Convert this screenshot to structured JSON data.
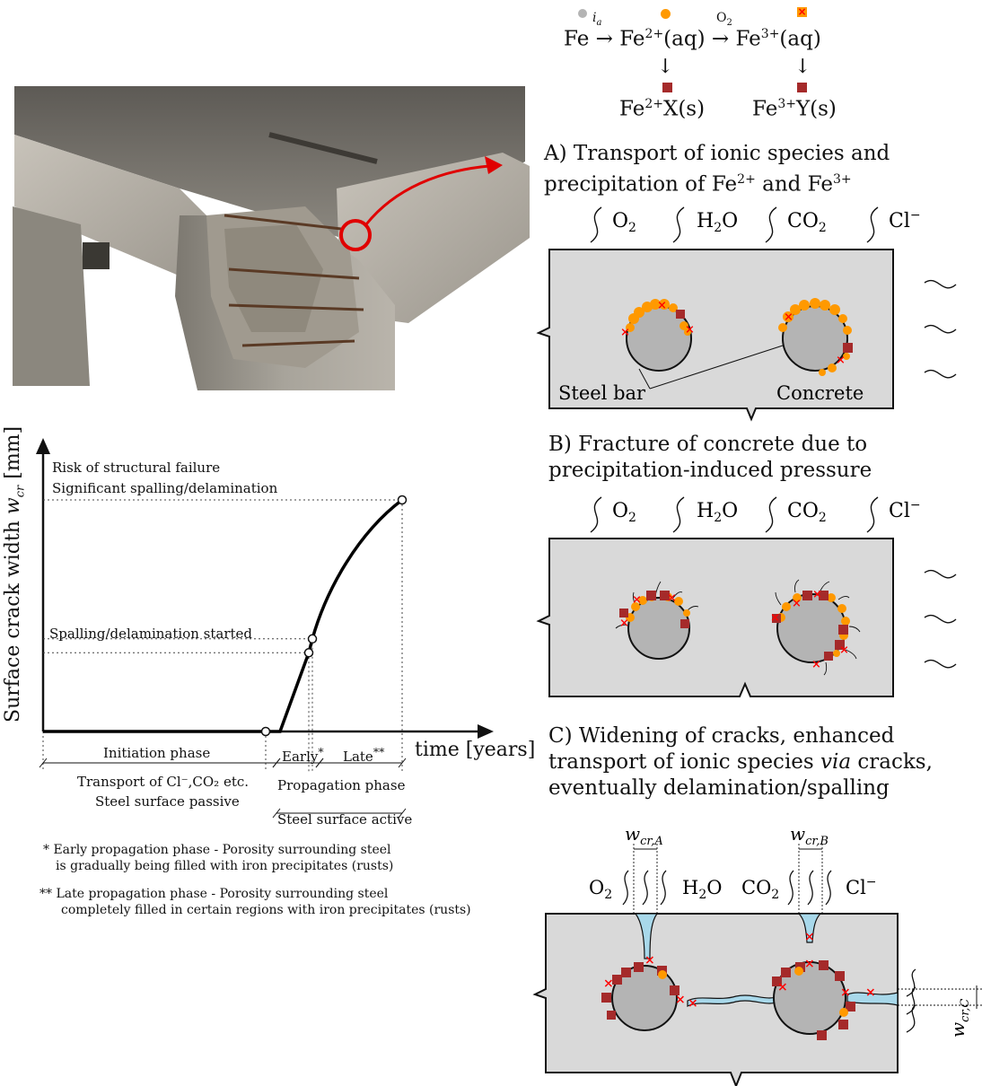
{
  "colors": {
    "concrete": "#d9d9d9",
    "steel": "#b4b4b4",
    "fe2_aq": "#ff9900",
    "fe_solid": "#a52a2a",
    "fe3_marker": "#ff0000",
    "crack_water": "#a8d8ea",
    "curve": "#000000",
    "photo_arrow": "#e00000"
  },
  "reaction": {
    "fe": "Fe",
    "ia": "i",
    "ia_sub": "a",
    "fe2_aq": "Fe",
    "fe2_aq_sup": "2+",
    "fe2_aq_tail": "(aq)",
    "o2": "O",
    "o2_sub": "2",
    "fe3_aq": "Fe",
    "fe3_aq_sup": "3+",
    "fe3_aq_tail": "(aq)",
    "fe2_s": "Fe",
    "fe2_s_sup": "2+",
    "fe2_s_tail": "X(s)",
    "fe3_s": "Fe",
    "fe3_s_sup": "3+",
    "fe3_s_tail": "Y(s)"
  },
  "panel_a": {
    "title_line1": "A) Transport of ionic species and",
    "title_line2_pre": "precipitation of Fe",
    "title_line2_sup1": "2+",
    "title_line2_mid": " and Fe",
    "title_line2_sup2": "3+",
    "species": [
      "O",
      "H",
      "CO",
      "Cl"
    ],
    "species_o2_sub": "2",
    "species_h2o_sub": "2",
    "species_h2o_tail": "O",
    "species_co2_sub": "2",
    "species_cl_sup": "−",
    "label_steel": "Steel bar",
    "label_concrete": "Concrete"
  },
  "panel_b": {
    "title_line1": "B) Fracture of concrete due to",
    "title_line2": "precipitation-induced pressure"
  },
  "panel_c": {
    "title_line1": "C) Widening of cracks, enhanced",
    "title_line2_pre": "transport of ionic species ",
    "title_line2_em": "via",
    "title_line2_post": " cracks,",
    "title_line3": "eventually delamination/spalling",
    "w_a": "w",
    "w_a_sub": "cr,A",
    "w_b": "w",
    "w_b_sub": "cr,B",
    "w_c": "w",
    "w_c_sub": "cr,C"
  },
  "chart_data": {
    "type": "line",
    "ylabel": "Surface crack width w_cr [mm]",
    "ylabel_text": "Surface crack width ",
    "ylabel_var": "w",
    "ylabel_sub": "cr",
    "ylabel_unit": " [mm]",
    "xlabel": "time [years]",
    "annotation_top_1": "Risk of structural failure",
    "annotation_top_2": "Significant spalling/delamination",
    "annotation_mid": "Spalling/delamination started",
    "points": [
      {
        "t": 0,
        "w": 0
      },
      {
        "t": 0.62,
        "w": 0
      },
      {
        "t": 0.66,
        "w": 0.0
      },
      {
        "t": 0.74,
        "w": 0.34
      },
      {
        "t": 0.75,
        "w": 0.4
      },
      {
        "t": 0.82,
        "w": 0.68
      },
      {
        "t": 0.92,
        "w": 0.88
      },
      {
        "t": 1.0,
        "w": 1.0
      }
    ],
    "markers": [
      {
        "t": 0.62,
        "w": 0
      },
      {
        "t": 0.74,
        "w": 0.34
      },
      {
        "t": 0.75,
        "w": 0.4
      },
      {
        "t": 1.0,
        "w": 1.0
      }
    ],
    "phases": {
      "initiation": "Initiation phase",
      "early": "Early",
      "early_mark": "*",
      "late": "Late",
      "late_mark": "**",
      "transport": "Transport of Cl⁻,CO₂ etc.",
      "passive": "Steel surface passive",
      "propagation": "Propagation phase",
      "active": "Steel surface active"
    }
  },
  "footnotes": {
    "early_1": "* Early propagation phase - Porosity surrounding steel",
    "early_2": "is gradually being filled with iron precipitates (rusts)",
    "late_1": "** Late propagation phase - Porosity surrounding steel",
    "late_2": "completely filled in certain regions with iron precipitates (rusts)"
  }
}
